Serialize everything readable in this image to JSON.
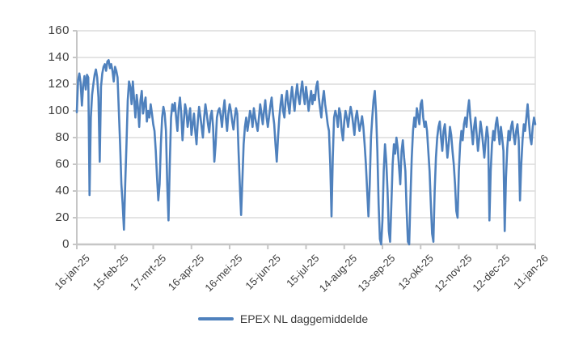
{
  "legend": {
    "label": "EPEX NL daggemiddelde",
    "swatch_color": "#4F81BD"
  },
  "colors": {
    "line": "#4F81BD",
    "grid": "#DCDCDC",
    "axis": "#C6C6C6",
    "text": "#3D3D3D",
    "background": "#FFFFFF"
  },
  "chart_data": {
    "type": "line",
    "title": "",
    "xlabel": "",
    "ylabel": "",
    "ylim": [
      0,
      160
    ],
    "y_ticks": [
      0,
      20,
      40,
      60,
      80,
      100,
      120,
      140,
      160
    ],
    "grid": "horizontal",
    "legend_position": "bottom",
    "x_tick_labels": [
      "16-jan-25",
      "15-feb-25",
      "17-mrt-25",
      "16-apr-25",
      "16-mei-25",
      "15-jun-25",
      "15-jul-25",
      "14-aug-25",
      "13-sep-25",
      "13-okt-25",
      "12-nov-25",
      "12-dec-25",
      "11-jan-26"
    ],
    "x_tick_interval_days": 30,
    "series": [
      {
        "name": "EPEX NL daggemiddelde",
        "color": "#4F81BD",
        "values": [
          99,
          123,
          128,
          121,
          104,
          119,
          126,
          116,
          127,
          125,
          37,
          95,
          112,
          120,
          127,
          131,
          125,
          110,
          62,
          118,
          128,
          133,
          135,
          130,
          137,
          138,
          132,
          135,
          130,
          122,
          133,
          130,
          125,
          100,
          75,
          45,
          30,
          11,
          45,
          75,
          108,
          122,
          118,
          105,
          122,
          108,
          95,
          112,
          103,
          88,
          108,
          115,
          98,
          105,
          110,
          92,
          100,
          95,
          105,
          98,
          90,
          85,
          70,
          50,
          33,
          45,
          75,
          95,
          103,
          98,
          85,
          45,
          18,
          60,
          95,
          105,
          100,
          106,
          95,
          85,
          102,
          110,
          98,
          78,
          92,
          105,
          100,
          88,
          95,
          102,
          82,
          90,
          98,
          85,
          75,
          92,
          103,
          96,
          88,
          80,
          95,
          105,
          98,
          90,
          84,
          96,
          100,
          88,
          62,
          75,
          95,
          100,
          102,
          96,
          88,
          100,
          108,
          95,
          85,
          98,
          105,
          100,
          92,
          86,
          95,
          102,
          98,
          70,
          45,
          22,
          48,
          75,
          88,
          95,
          85,
          92,
          100,
          96,
          88,
          102,
          95,
          90,
          85,
          95,
          105,
          98,
          90,
          100,
          108,
          95,
          88,
          96,
          104,
          110,
          98,
          90,
          75,
          62,
          80,
          95,
          105,
          112,
          100,
          95,
          108,
          115,
          105,
          98,
          110,
          118,
          108,
          100,
          112,
          120,
          110,
          105,
          115,
          122,
          112,
          105,
          118,
          110,
          100,
          108,
          115,
          105,
          112,
          108,
          118,
          122,
          110,
          102,
          95,
          108,
          115,
          105,
          98,
          90,
          85,
          60,
          21,
          65,
          95,
          100,
          96,
          88,
          102,
          98,
          85,
          78,
          92,
          100,
          95,
          88,
          96,
          103,
          98,
          90,
          82,
          95,
          100,
          92,
          85,
          90,
          96,
          88,
          75,
          60,
          40,
          21,
          45,
          80,
          95,
          108,
          115,
          98,
          70,
          30,
          4,
          0,
          18,
          55,
          75,
          62,
          40,
          10,
          2,
          30,
          60,
          75,
          68,
          80,
          72,
          58,
          45,
          70,
          78,
          65,
          55,
          25,
          2,
          0,
          35,
          65,
          85,
          95,
          88,
          102,
          96,
          90,
          105,
          108,
          95,
          88,
          92,
          85,
          70,
          55,
          30,
          8,
          2,
          40,
          65,
          80,
          88,
          92,
          80,
          70,
          85,
          90,
          78,
          65,
          75,
          88,
          82,
          70,
          60,
          45,
          25,
          20,
          55,
          75,
          85,
          78,
          90,
          95,
          88,
          100,
          108,
          95,
          85,
          75,
          88,
          95,
          82,
          70,
          80,
          92,
          85,
          75,
          65,
          78,
          88,
          80,
          18,
          55,
          75,
          85,
          78,
          90,
          95,
          85,
          75,
          88,
          80,
          70,
          10,
          50,
          72,
          85,
          78,
          88,
          92,
          82,
          75,
          85,
          90,
          78,
          33,
          60,
          78,
          90,
          85,
          95,
          105,
          92,
          80,
          75,
          88,
          95,
          90
        ]
      }
    ]
  }
}
